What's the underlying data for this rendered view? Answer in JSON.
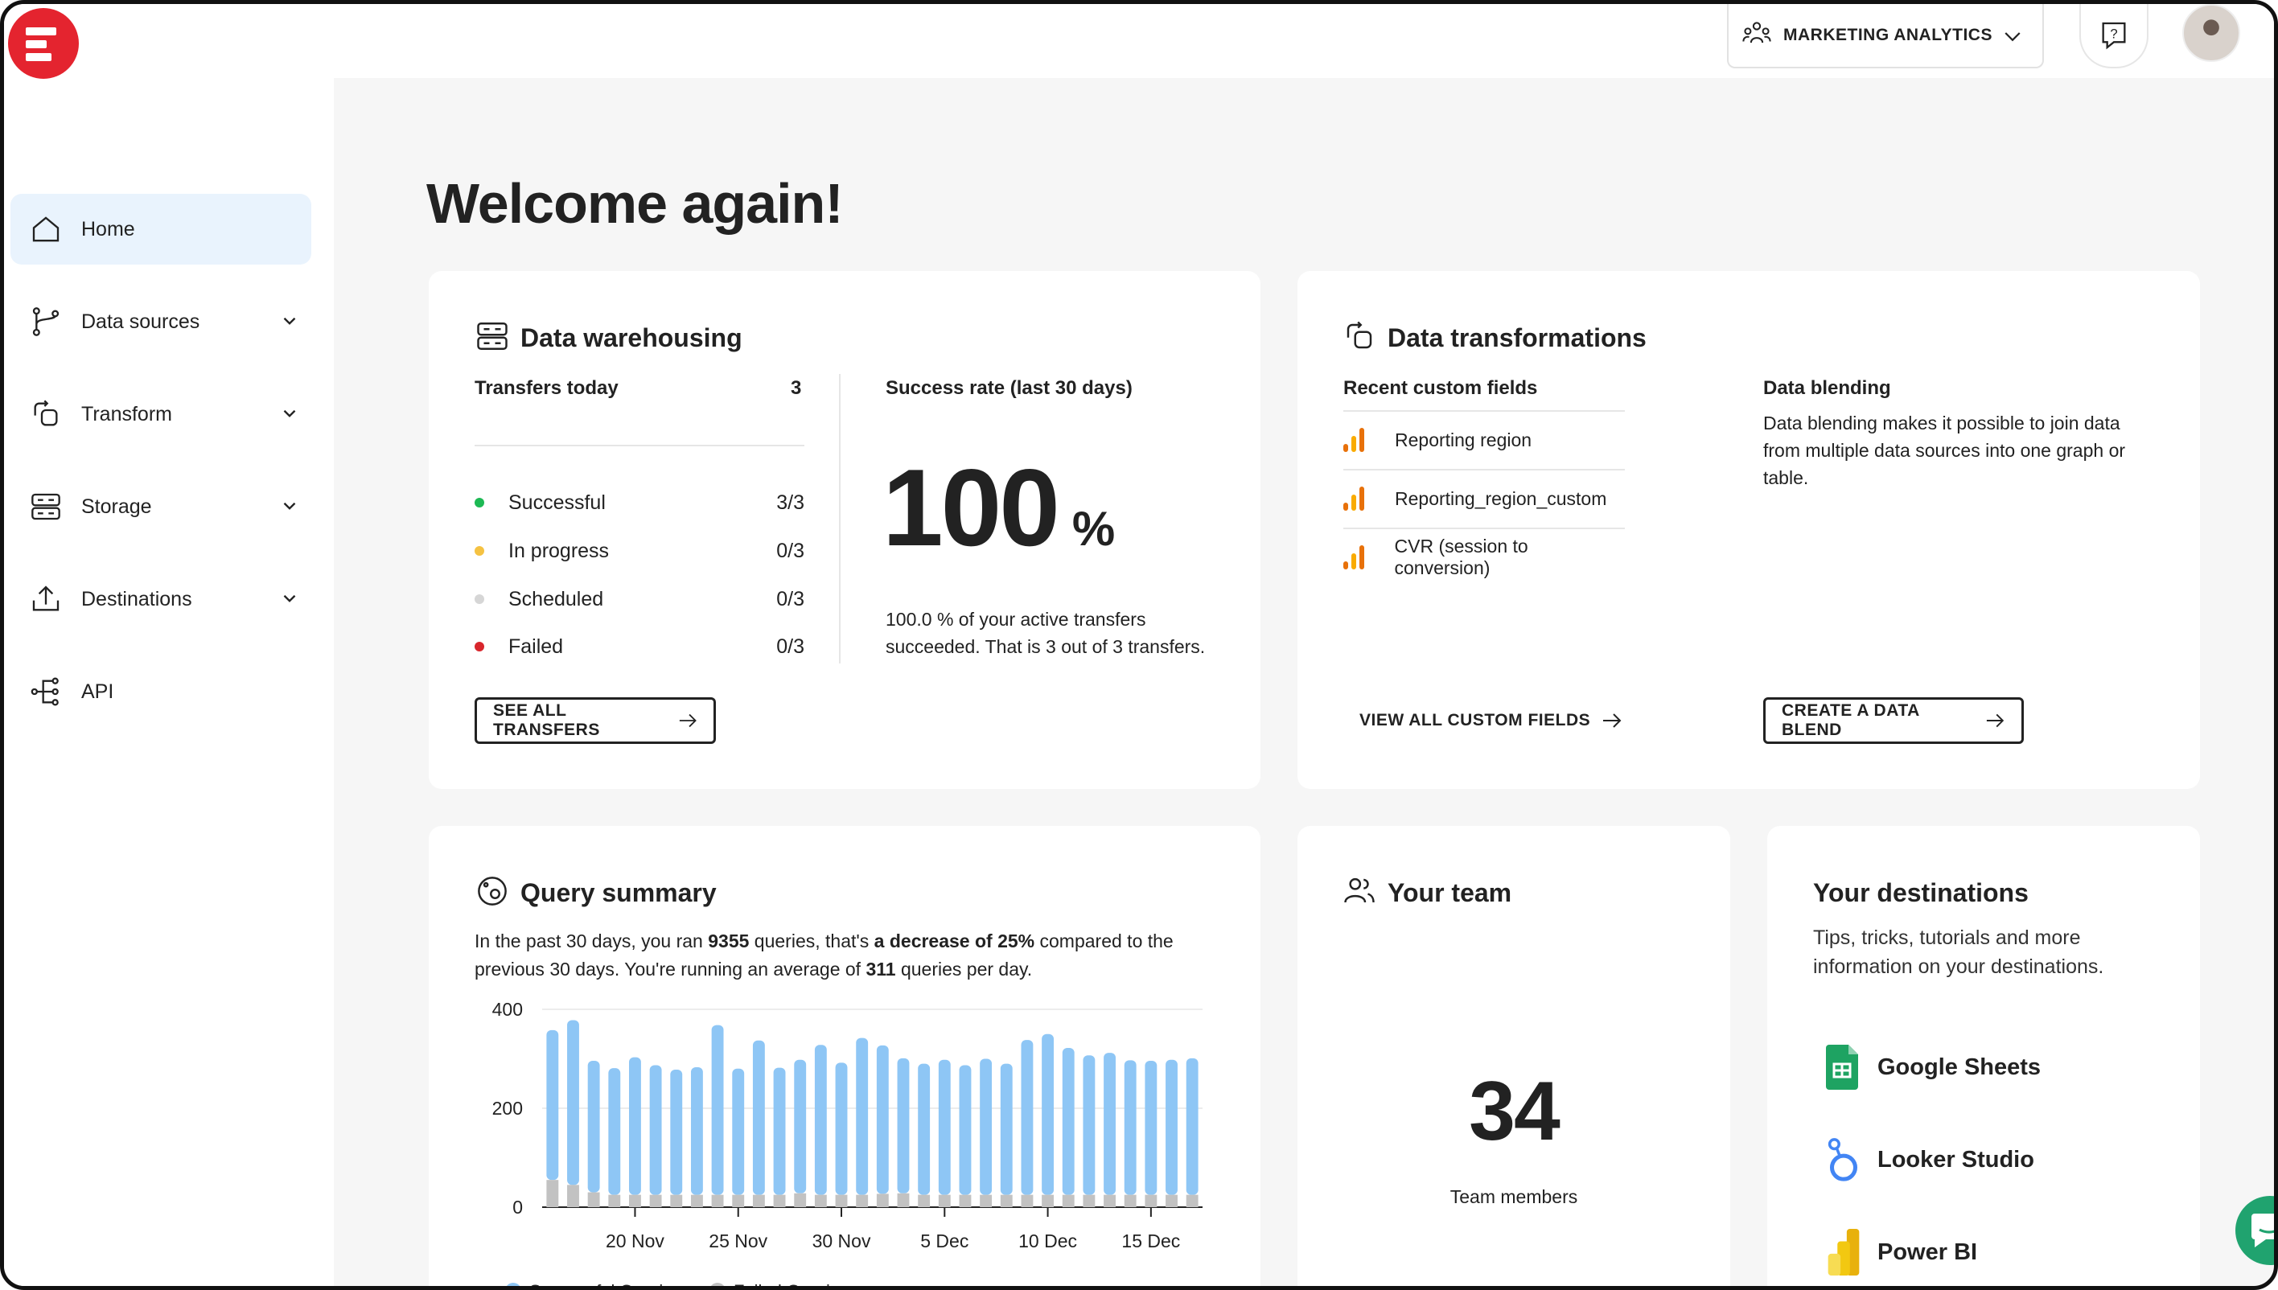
{
  "sidebar": {
    "items": [
      {
        "label": "Home",
        "icon": "home-icon"
      },
      {
        "label": "Data sources",
        "icon": "data-sources-icon"
      },
      {
        "label": "Transform",
        "icon": "transform-icon"
      },
      {
        "label": "Storage",
        "icon": "storage-icon"
      },
      {
        "label": "Destinations",
        "icon": "destinations-icon"
      },
      {
        "label": "API",
        "icon": "api-icon"
      }
    ]
  },
  "header": {
    "workspace": "MARKETING ANALYTICS"
  },
  "page": {
    "title": "Welcome again!"
  },
  "warehousing": {
    "title": "Data warehousing",
    "transfers_label": "Transfers today",
    "transfers_count": "3",
    "statuses": [
      {
        "label": "Successful",
        "value": "3/3",
        "color": "#1db954"
      },
      {
        "label": "In progress",
        "value": "0/3",
        "color": "#f5c242"
      },
      {
        "label": "Scheduled",
        "value": "0/3",
        "color": "#d6d6d6"
      },
      {
        "label": "Failed",
        "value": "0/3",
        "color": "#d8262c"
      }
    ],
    "success_label": "Success rate (last 30 days)",
    "success_value": "100",
    "success_unit": "%",
    "success_note_1": "100.0 % of your active transfers",
    "success_note_2": "succeeded. That is 3 out of 3 transfers.",
    "button": "SEE ALL TRANSFERS"
  },
  "transformations": {
    "title": "Data transformations",
    "custom_fields_label": "Recent custom fields",
    "custom_fields": [
      "Reporting region",
      "Reporting_region_custom",
      "CVR (session to conversion)"
    ],
    "blending_label": "Data blending",
    "blending_text_1": "Data blending makes it possible to join data",
    "blending_text_2": "from multiple data sources into one graph or",
    "blending_text_3": "table.",
    "view_all": "VIEW ALL CUSTOM FIELDS",
    "create_blend": "CREATE A DATA BLEND"
  },
  "query": {
    "title": "Query summary",
    "s1": "In the past 30 days, you ran ",
    "s1_b": "9355",
    "s2": " queries, that's ",
    "s2_b": "a decrease of 25%",
    "s3": " compared to the",
    "s4": "previous 30 days. You're running an average of ",
    "s4_b": "311",
    "s5": " queries per day.",
    "legend_success": "Successful Queries",
    "legend_failed": "Failed Queries"
  },
  "team": {
    "title": "Your team",
    "count": "34",
    "label": "Team members"
  },
  "destinations": {
    "title": "Your destinations",
    "text_1": "Tips, tricks, tutorials and more",
    "text_2": "information on your destinations.",
    "items": [
      {
        "name": "Google Sheets",
        "icon": "google-sheets-icon"
      },
      {
        "name": "Looker Studio",
        "icon": "looker-studio-icon"
      },
      {
        "name": "Power BI",
        "icon": "power-bi-icon"
      }
    ]
  },
  "chart_data": {
    "type": "bar",
    "title": "",
    "xlabel": "",
    "ylabel": "",
    "ylim": [
      0,
      400
    ],
    "y_ticks": [
      "0",
      "200",
      "400"
    ],
    "x_tick_labels": [
      "20 Nov",
      "25 Nov",
      "30 Nov",
      "5 Dec",
      "10 Dec",
      "15 Dec"
    ],
    "categories": [
      "16 Nov",
      "17 Nov",
      "18 Nov",
      "19 Nov",
      "20 Nov",
      "21 Nov",
      "22 Nov",
      "23 Nov",
      "24 Nov",
      "25 Nov",
      "26 Nov",
      "27 Nov",
      "28 Nov",
      "29 Nov",
      "30 Nov",
      "1 Dec",
      "2 Dec",
      "3 Dec",
      "4 Dec",
      "5 Dec",
      "6 Dec",
      "7 Dec",
      "8 Dec",
      "9 Dec",
      "10 Dec",
      "11 Dec",
      "12 Dec",
      "13 Dec",
      "14 Dec",
      "15 Dec",
      "16 Dec",
      "17 Dec"
    ],
    "series": [
      {
        "name": "Successful Queries",
        "color": "#8ec6f5",
        "values": [
          303,
          333,
          266,
          256,
          278,
          262,
          253,
          258,
          343,
          255,
          312,
          257,
          270,
          303,
          267,
          317,
          300,
          273,
          265,
          273,
          262,
          275,
          265,
          313,
          325,
          297,
          282,
          287,
          272,
          271,
          273,
          276
        ]
      },
      {
        "name": "Failed Queries",
        "color": "#c2c2c2",
        "values": [
          55,
          45,
          30,
          25,
          25,
          25,
          25,
          25,
          25,
          25,
          25,
          25,
          28,
          25,
          25,
          25,
          27,
          28,
          25,
          25,
          25,
          25,
          25,
          25,
          25,
          25,
          25,
          25,
          25,
          25,
          25,
          25
        ]
      }
    ],
    "legend": "bottom-left"
  }
}
